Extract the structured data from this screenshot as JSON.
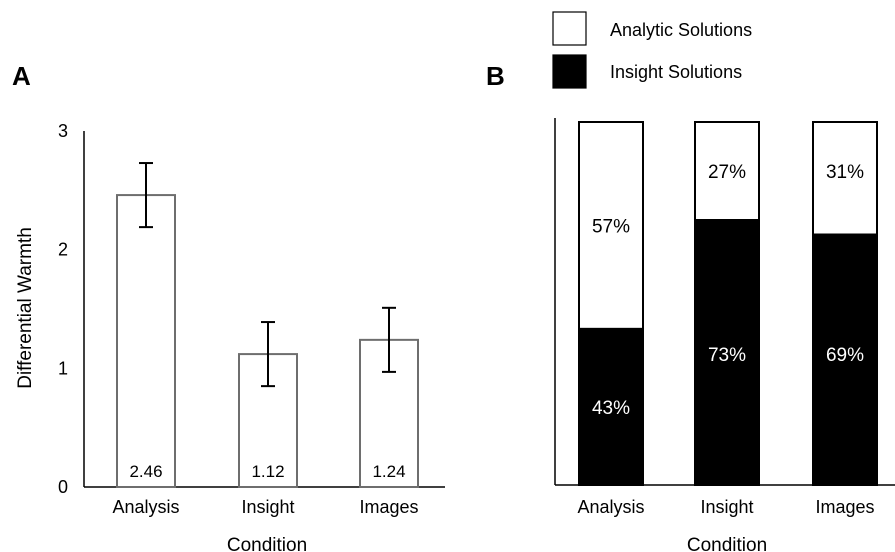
{
  "chart_data": [
    {
      "panel_label": "A",
      "type": "bar",
      "categories": [
        "Analysis",
        "Insight",
        "Images"
      ],
      "values": [
        2.46,
        1.12,
        1.24
      ],
      "error": [
        0.27,
        0.27,
        0.27
      ],
      "value_labels": [
        "2.46",
        "1.12",
        "1.24"
      ],
      "xlabel": "Condition",
      "ylabel": "Differential Warmth",
      "ylim": [
        0,
        3
      ],
      "yticks": [
        "0",
        "1",
        "2",
        "3"
      ],
      "grid": false,
      "colors": {
        "bar_fill": "#ffffff",
        "bar_stroke": "#6e6e6e",
        "axis": "#000000"
      }
    },
    {
      "panel_label": "B",
      "type": "bar",
      "stacked": true,
      "categories": [
        "Analysis",
        "Insight",
        "Images"
      ],
      "series": [
        {
          "name": "Insight Solutions",
          "values": [
            43,
            73,
            69
          ],
          "labels": [
            "43%",
            "73%",
            "69%"
          ],
          "color": "#000000"
        },
        {
          "name": "Analytic Solutions",
          "values": [
            57,
            27,
            31
          ],
          "labels": [
            "57%",
            "27%",
            "31%"
          ],
          "color": "#ffffff"
        }
      ],
      "xlabel": "Condition",
      "ylim": [
        0,
        100
      ],
      "grid": false,
      "legend_position": "top",
      "legend": [
        "Analytic Solutions",
        "Insight Solutions"
      ]
    }
  ]
}
